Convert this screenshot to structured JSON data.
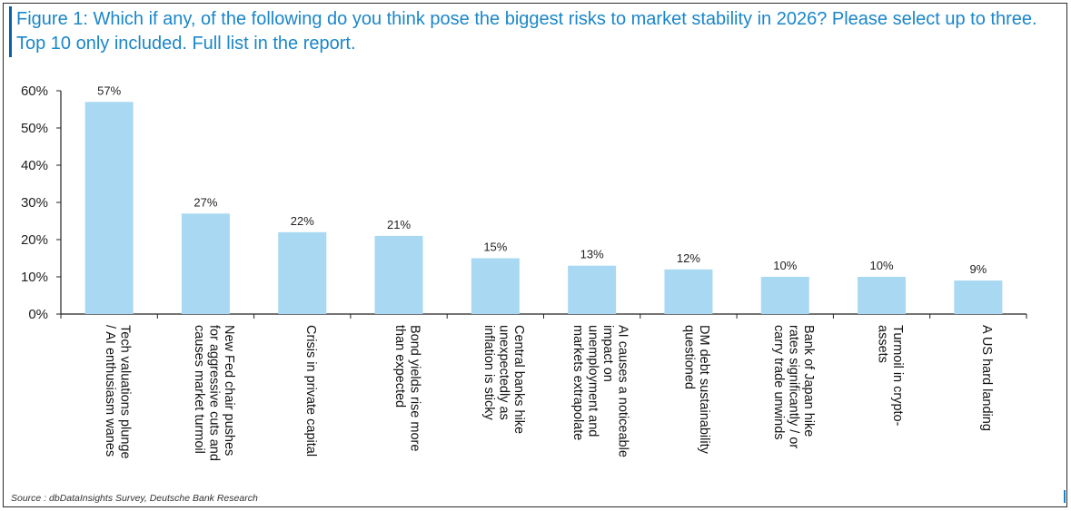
{
  "title": "Figure 1: Which if any, of the following do you think pose the biggest risks to market stability in 2026? Please select up to three. Top 10 only included. Full list in the report.",
  "source": "Source : dbDataInsights Survey, Deutsche Bank Research",
  "colors": {
    "bar": "#a8d8f2",
    "title": "#1a86c9",
    "axis": "#222222"
  },
  "chart_data": {
    "type": "bar",
    "title": "Which if any, of the following do you think pose the biggest risks to market stability in 2026?",
    "xlabel": "",
    "ylabel": "",
    "ylim": [
      0,
      60
    ],
    "yticks": [
      "0%",
      "10%",
      "20%",
      "30%",
      "40%",
      "50%",
      "60%"
    ],
    "categories": [
      [
        "Tech valuations plunge",
        "/ AI enthusiasm wanes"
      ],
      [
        "New Fed chair pushes",
        "for aggressive cuts and",
        "causes market turmoil"
      ],
      [
        "Crisis in private capital"
      ],
      [
        "Bond yields rise more",
        "than expected"
      ],
      [
        "Central banks hike",
        "unexpectedly as",
        "inflation is sticky"
      ],
      [
        "AI causes a noticeable",
        "impact on",
        "unemployment and",
        "markets extrapolate"
      ],
      [
        "DM debt sustainability",
        "questioned"
      ],
      [
        "Bank of Japan hike",
        "rates significantly / or",
        "carry trade unwinds"
      ],
      [
        "Turmoil in crypto-",
        "assets"
      ],
      [
        "A US hard landing"
      ]
    ],
    "values": [
      57,
      27,
      22,
      21,
      15,
      13,
      12,
      10,
      10,
      9
    ],
    "data_labels": [
      "57%",
      "27%",
      "22%",
      "21%",
      "15%",
      "13%",
      "12%",
      "10%",
      "10%",
      "9%"
    ],
    "grid": false,
    "legend": "none"
  }
}
